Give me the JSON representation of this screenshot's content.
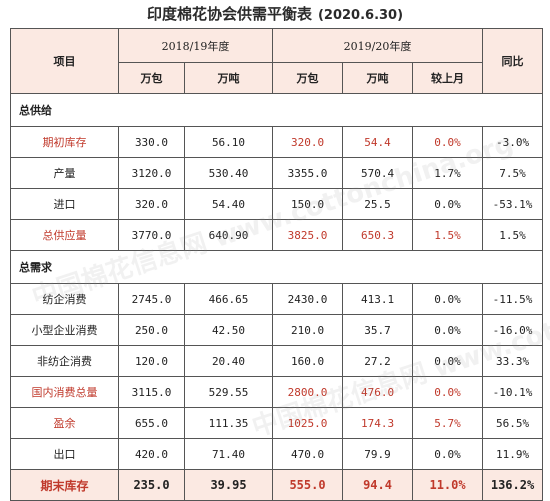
{
  "title": "印度棉花协会供需平衡表",
  "date": "(2020.6.30)",
  "headers": {
    "item": "项目",
    "year1": "2018/19年度",
    "year2": "2019/20年度",
    "yoy": "同比",
    "units": [
      "万包",
      "万吨",
      "万包",
      "万吨",
      "较上月"
    ]
  },
  "sections": {
    "supply": "总供给",
    "demand": "总需求"
  },
  "rows": [
    {
      "label": "期初库存",
      "a": "330.0",
      "b": "56.10",
      "c": "320.0",
      "d": "54.4",
      "e": "0.0%",
      "f": "-3.0%"
    },
    {
      "label": "产量",
      "a": "3120.0",
      "b": "530.40",
      "c": "3355.0",
      "d": "570.4",
      "e": "1.7%",
      "f": "7.5%"
    },
    {
      "label": "进口",
      "a": "320.0",
      "b": "54.40",
      "c": "150.0",
      "d": "25.5",
      "e": "0.0%",
      "f": "-53.1%"
    },
    {
      "label": "总供应量",
      "a": "3770.0",
      "b": "640.90",
      "c": "3825.0",
      "d": "650.3",
      "e": "1.5%",
      "f": "1.5%"
    },
    {
      "label": "纺企消费",
      "a": "2745.0",
      "b": "466.65",
      "c": "2430.0",
      "d": "413.1",
      "e": "0.0%",
      "f": "-11.5%"
    },
    {
      "label": "小型企业消费",
      "a": "250.0",
      "b": "42.50",
      "c": "210.0",
      "d": "35.7",
      "e": "0.0%",
      "f": "-16.0%"
    },
    {
      "label": "非纺企消费",
      "a": "120.0",
      "b": "20.40",
      "c": "160.0",
      "d": "27.2",
      "e": "0.0%",
      "f": "33.3%"
    },
    {
      "label": "国内消费总量",
      "a": "3115.0",
      "b": "529.55",
      "c": "2800.0",
      "d": "476.0",
      "e": "0.0%",
      "f": "-10.1%"
    },
    {
      "label": "盈余",
      "a": "655.0",
      "b": "111.35",
      "c": "1025.0",
      "d": "174.3",
      "e": "5.7%",
      "f": "56.5%"
    },
    {
      "label": "出口",
      "a": "420.0",
      "b": "71.40",
      "c": "470.0",
      "d": "79.9",
      "e": "0.0%",
      "f": "11.9%"
    },
    {
      "label": "期末库存",
      "a": "235.0",
      "b": "39.95",
      "c": "555.0",
      "d": "94.4",
      "e": "11.0%",
      "f": "136.2%"
    }
  ],
  "watermark": "中国棉花信息网 www.cottonchina.org"
}
